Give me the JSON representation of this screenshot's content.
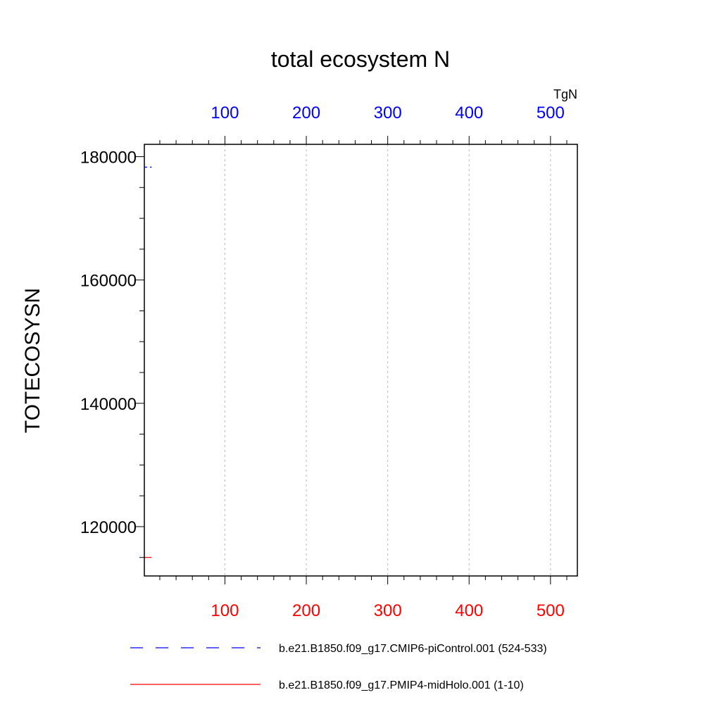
{
  "chart_data": {
    "type": "line",
    "title": "total ecosystem N",
    "ylabel": "TOTECOSYSN",
    "units": "TgN",
    "ylim": [
      112000,
      182000
    ],
    "y_ticks": [
      120000,
      140000,
      160000,
      180000
    ],
    "grid": "vertical dashed",
    "legend_position": "bottom",
    "x_bottom": {
      "range": [
        1,
        533
      ],
      "ticks": [
        100,
        200,
        300,
        400,
        500
      ],
      "color": "#ff0000"
    },
    "x_top": {
      "range": [
        1,
        533
      ],
      "ticks": [
        100,
        200,
        300,
        400,
        500
      ],
      "color": "#0000ff"
    },
    "series": [
      {
        "name": "b.e21.B1850.f09_g17.CMIP6-piControl.001 (524-533)",
        "axis": "top",
        "color": "#0000ff",
        "dash": "dashed",
        "x": [
          1,
          2,
          3,
          4,
          5,
          6,
          7,
          8,
          9,
          10
        ],
        "values": [
          178300,
          178300,
          178300,
          178300,
          178300,
          178300,
          178300,
          178300,
          178300,
          178300
        ]
      },
      {
        "name": "b.e21.B1850.f09_g17.PMIP4-midHolo.001 (1-10)",
        "axis": "bottom",
        "color": "#ff0000",
        "dash": "solid",
        "x": [
          1,
          2,
          3,
          4,
          5,
          6,
          7,
          8,
          9,
          10
        ],
        "values": [
          115000,
          115000,
          115000,
          115000,
          115000,
          115000,
          115000,
          115000,
          115000,
          115000
        ]
      }
    ]
  }
}
